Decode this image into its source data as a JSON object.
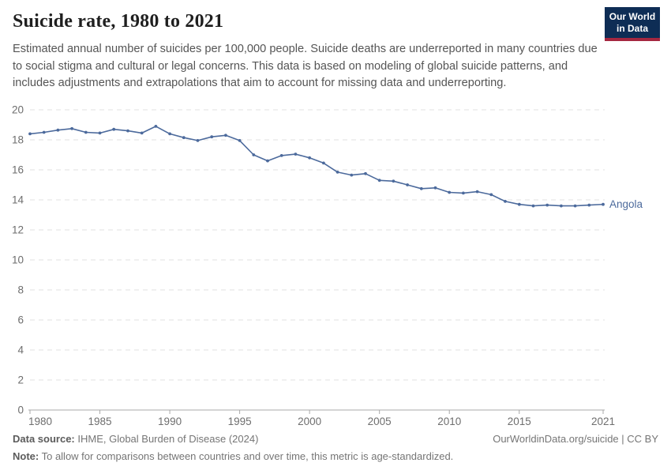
{
  "header": {
    "title": "Suicide rate, 1980 to 2021",
    "subtitle": "Estimated annual number of suicides per 100,000 people. Suicide deaths are underreported in many countries due to social stigma and cultural or legal concerns. This data is based on modeling of global suicide patterns, and includes adjustments and extrapolations that aim to account for missing data and underreporting.",
    "logo": {
      "line1": "Our World",
      "line2": "in Data",
      "bg_color": "#0e2d55",
      "bar_color": "#a52740"
    }
  },
  "chart_data": {
    "type": "line",
    "title": "Suicide rate, 1980 to 2021",
    "x": [
      1980,
      1981,
      1982,
      1983,
      1984,
      1985,
      1986,
      1987,
      1988,
      1989,
      1990,
      1991,
      1992,
      1993,
      1994,
      1995,
      1996,
      1997,
      1998,
      1999,
      2000,
      2001,
      2002,
      2003,
      2004,
      2005,
      2006,
      2007,
      2008,
      2009,
      2010,
      2011,
      2012,
      2013,
      2014,
      2015,
      2016,
      2017,
      2018,
      2019,
      2020,
      2021
    ],
    "series": [
      {
        "name": "Angola",
        "color": "#4C6A9C",
        "values": [
          18.4,
          18.5,
          18.65,
          18.75,
          18.5,
          18.45,
          18.7,
          18.6,
          18.45,
          18.9,
          18.4,
          18.15,
          17.95,
          18.2,
          18.3,
          17.95,
          17.0,
          16.6,
          16.95,
          17.05,
          16.8,
          16.45,
          15.85,
          15.65,
          15.75,
          15.3,
          15.25,
          15.0,
          14.75,
          14.8,
          14.5,
          14.45,
          14.55,
          14.35,
          13.9,
          13.7,
          13.6,
          13.65,
          13.6,
          13.6,
          13.65,
          13.7
        ]
      }
    ],
    "xlim": [
      1980,
      2021
    ],
    "ylim": [
      0,
      20
    ],
    "xticks": [
      1980,
      1985,
      1990,
      1995,
      2000,
      2005,
      2010,
      2015,
      2021
    ],
    "yticks": [
      0,
      2,
      4,
      6,
      8,
      10,
      12,
      14,
      16,
      18,
      20
    ],
    "grid": "horizontal-dashed",
    "grid_color": "#e2e2e2",
    "axis_color": "#a8a8a8",
    "tick_label_color": "#6e6e6e",
    "legend_position": "end-of-line"
  },
  "footer": {
    "datasource_label": "Data source:",
    "datasource_value": " IHME, Global Burden of Disease (2024)",
    "rights": "OurWorldinData.org/suicide | CC BY",
    "note_label": "Note:",
    "note_value": " To allow for comparisons between countries and over time, this metric is age-standardized."
  }
}
